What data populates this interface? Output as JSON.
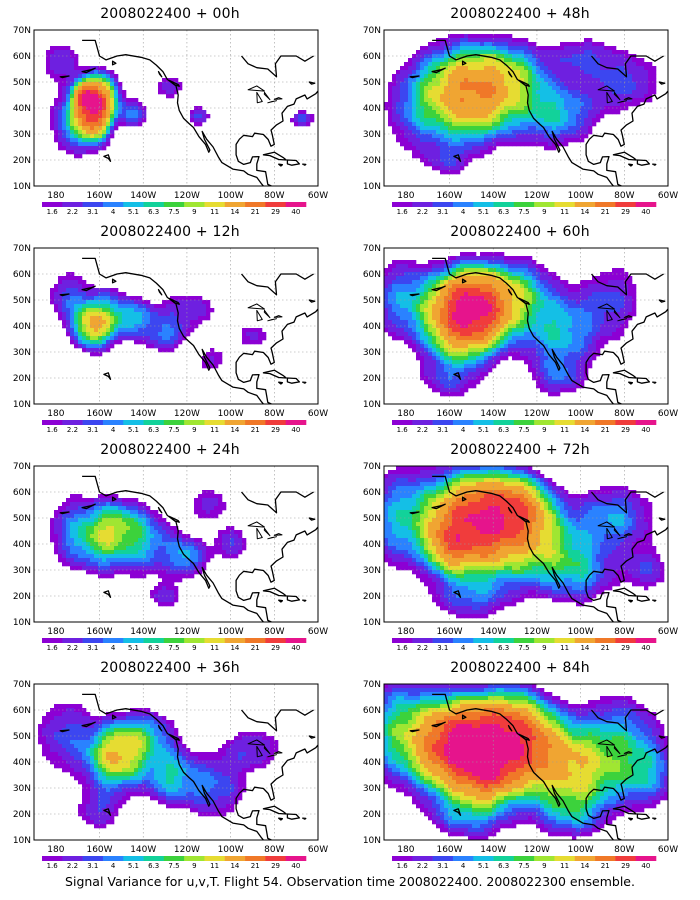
{
  "map": {
    "lat_labels": [
      "70N",
      "60N",
      "50N",
      "40N",
      "30N",
      "20N",
      "10N"
    ],
    "lon_labels": [
      "180",
      "160W",
      "140W",
      "120W",
      "100W",
      "80W",
      "60W"
    ],
    "colorbar": {
      "labels": [
        "1.6",
        "2.2",
        "3.1",
        "4",
        "5.1",
        "6.3",
        "7.5",
        "9",
        "11",
        "14",
        "21",
        "29",
        "40"
      ],
      "colors": [
        "#ffffff",
        "#8c00d4",
        "#6e20e0",
        "#3c46f0",
        "#2a82ff",
        "#14bfe6",
        "#12d29a",
        "#3cd23c",
        "#a0e632",
        "#e6dc32",
        "#f0a532",
        "#f07828",
        "#f03c3c",
        "#e6148c"
      ]
    },
    "coastline_color": "#000000",
    "grid_color": "#9a9a9a"
  },
  "panels": [
    {
      "title": "2008022400  + 00h",
      "level": 0
    },
    {
      "title": "2008022400  + 48h",
      "level": 4
    },
    {
      "title": "2008022400  + 12h",
      "level": 1
    },
    {
      "title": "2008022400  + 60h",
      "level": 5
    },
    {
      "title": "2008022400  + 24h",
      "level": 2
    },
    {
      "title": "2008022400  + 72h",
      "level": 6
    },
    {
      "title": "2008022400  + 36h",
      "level": 3
    },
    {
      "title": "2008022400  + 84h",
      "level": 7
    }
  ],
  "footer": "Signal Variance for u,v,T. Flight 54. Observation time 2008022400. 2008022300 ensemble."
}
